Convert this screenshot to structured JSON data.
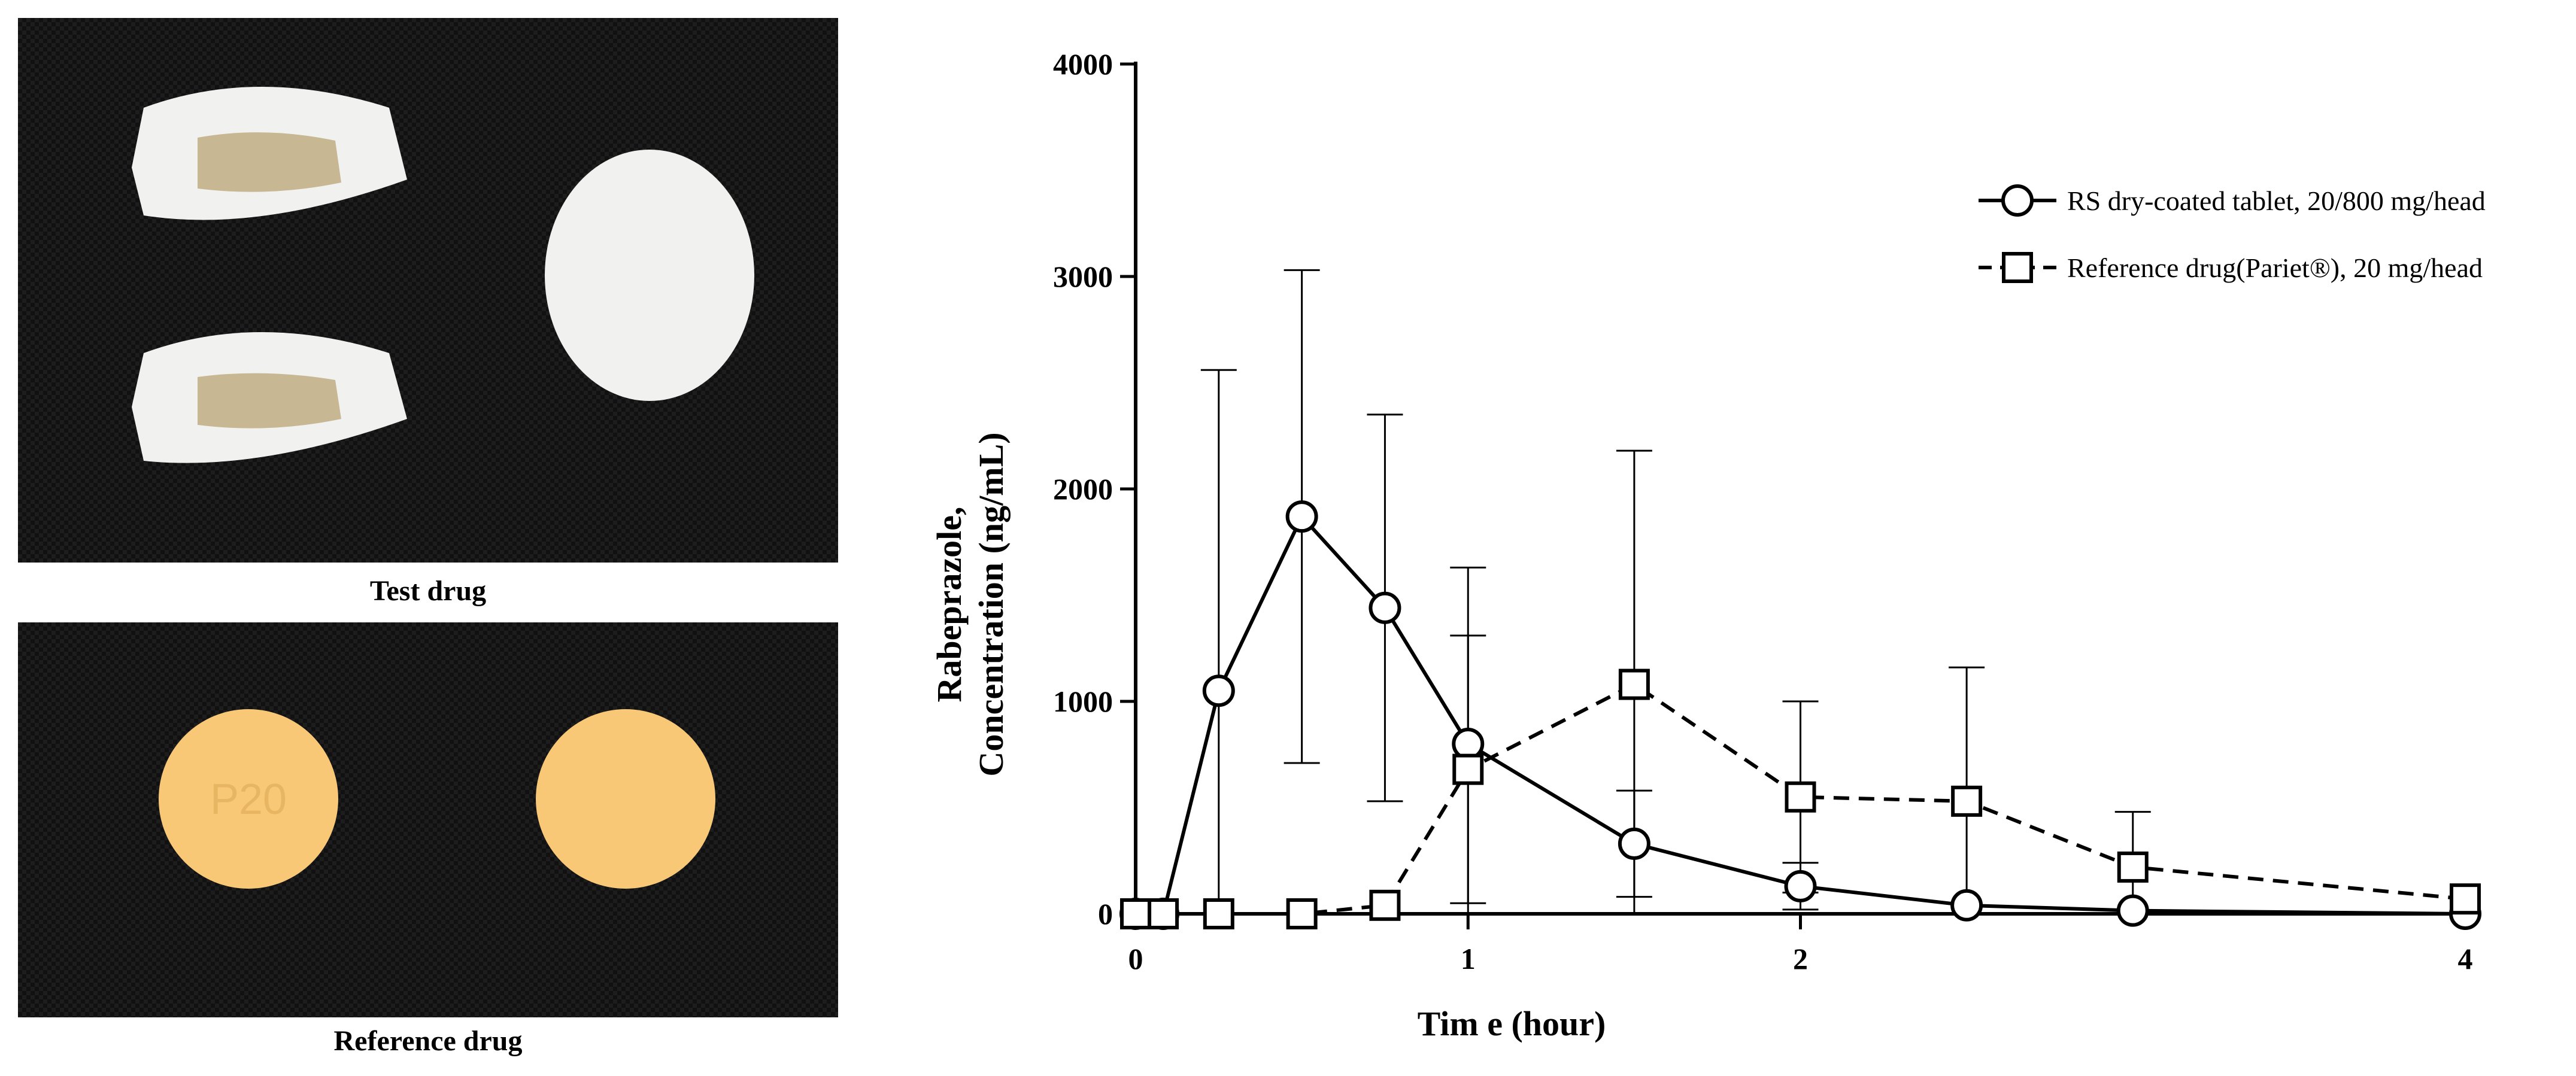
{
  "photos": {
    "test_caption": "Test drug",
    "reference_caption": "Reference drug",
    "tablet_imprint": "P20"
  },
  "colors": {
    "background": "#ffffff",
    "line": "#000000",
    "photo_background": "#111111",
    "white_tablet": "#f1f1ef",
    "core": "#c7b793",
    "yellow_tablet": "#f8c877"
  },
  "chart_data": {
    "type": "line",
    "xlabel": "Tim e (hour)",
    "ylabel_line1": "Rabeprazole,",
    "ylabel_line2": "Concentration (ng/mL)",
    "xlim": [
      0,
      4
    ],
    "ylim": [
      0,
      4000
    ],
    "xticks": [
      0,
      1,
      2,
      4
    ],
    "yticks": [
      0,
      1000,
      2000,
      3000,
      4000
    ],
    "grid": false,
    "legend_position": "top-right",
    "series": [
      {
        "name": "RS dry-coated tablet, 20/800 mg/head",
        "marker": "circle",
        "style": "solid",
        "x": [
          0,
          0.083,
          0.25,
          0.5,
          0.75,
          1.0,
          1.5,
          2.0,
          2.5,
          3.0,
          4.0
        ],
        "y": [
          0,
          0,
          1050,
          1870,
          1440,
          800,
          330,
          130,
          40,
          15,
          0
        ],
        "error": [
          0,
          0,
          1510,
          1160,
          910,
          830,
          250,
          110,
          0,
          0,
          0
        ]
      },
      {
        "name": "Reference drug(Pariet®), 20 mg/head",
        "marker": "square",
        "style": "dashed",
        "x": [
          0,
          0.083,
          0.25,
          0.5,
          0.75,
          1.0,
          1.5,
          2.0,
          2.5,
          3.0,
          4.0
        ],
        "y": [
          0,
          0,
          0,
          0,
          40,
          680,
          1080,
          550,
          530,
          220,
          70
        ],
        "error": [
          0,
          0,
          0,
          0,
          0,
          630,
          1100,
          450,
          630,
          260,
          0
        ]
      }
    ]
  }
}
